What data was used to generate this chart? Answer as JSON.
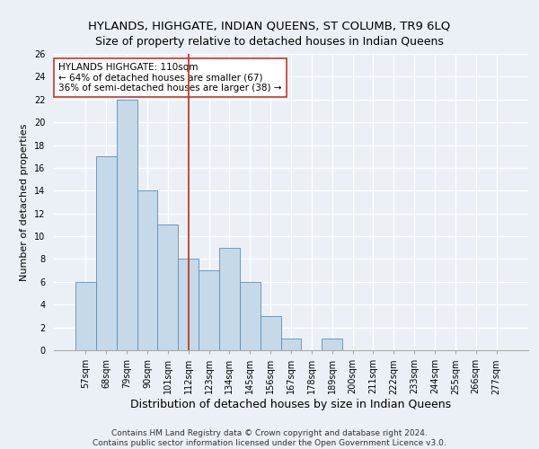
{
  "title": "HYLANDS, HIGHGATE, INDIAN QUEENS, ST COLUMB, TR9 6LQ",
  "subtitle": "Size of property relative to detached houses in Indian Queens",
  "xlabel": "Distribution of detached houses by size in Indian Queens",
  "ylabel": "Number of detached properties",
  "categories": [
    "57sqm",
    "68sqm",
    "79sqm",
    "90sqm",
    "101sqm",
    "112sqm",
    "123sqm",
    "134sqm",
    "145sqm",
    "156sqm",
    "167sqm",
    "178sqm",
    "189sqm",
    "200sqm",
    "211sqm",
    "222sqm",
    "233sqm",
    "244sqm",
    "255sqm",
    "266sqm",
    "277sqm"
  ],
  "values": [
    6,
    17,
    22,
    14,
    11,
    8,
    7,
    9,
    6,
    3,
    1,
    0,
    1,
    0,
    0,
    0,
    0,
    0,
    0,
    0,
    0
  ],
  "bar_color": "#c6d9e8",
  "bar_edge_color": "#5a8db5",
  "vline_x": 5.0,
  "vline_color": "#c0392b",
  "annotation_text": "HYLANDS HIGHGATE: 110sqm\n← 64% of detached houses are smaller (67)\n36% of semi-detached houses are larger (38) →",
  "annotation_box_color": "white",
  "annotation_box_edge_color": "#c0392b",
  "ylim": [
    0,
    26
  ],
  "yticks": [
    0,
    2,
    4,
    6,
    8,
    10,
    12,
    14,
    16,
    18,
    20,
    22,
    24,
    26
  ],
  "footer": "Contains HM Land Registry data © Crown copyright and database right 2024.\nContains public sector information licensed under the Open Government Licence v3.0.",
  "background_color": "#eaf0f6",
  "plot_bg_color": "#eaf0f6",
  "grid_color": "white",
  "title_fontsize": 9.5,
  "subtitle_fontsize": 9,
  "xlabel_fontsize": 9,
  "ylabel_fontsize": 8,
  "tick_fontsize": 7,
  "footer_fontsize": 6.5,
  "annotation_fontsize": 7.5
}
